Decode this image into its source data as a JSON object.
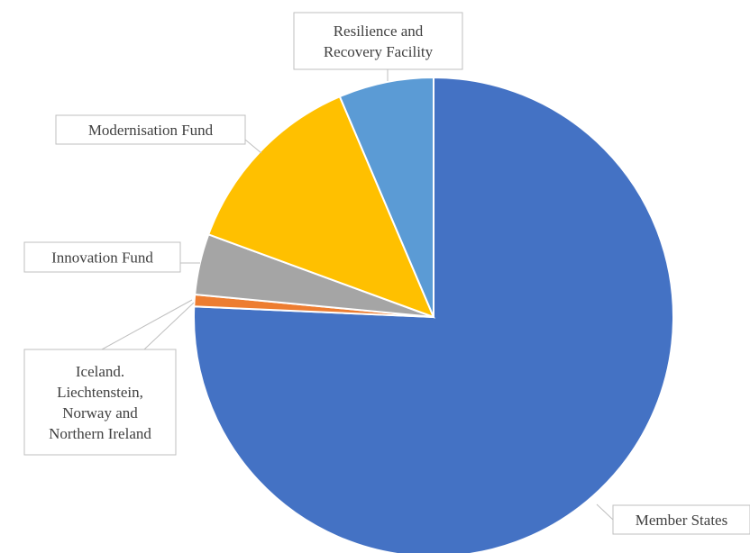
{
  "chart_data": {
    "type": "pie",
    "categories": [
      "Member States",
      "Iceland.\nLiechtenstein,\nNorway and\nNorthern Ireland",
      "Innovation Fund",
      "Modernisation Fund",
      "Resilience and\nRecovery Facility"
    ],
    "values": [
      75.7,
      0.8,
      4.1,
      13.0,
      6.4
    ],
    "colors": [
      "#4472c4",
      "#ed7d31",
      "#a5a5a5",
      "#ffc000",
      "#5b9bd5"
    ]
  }
}
